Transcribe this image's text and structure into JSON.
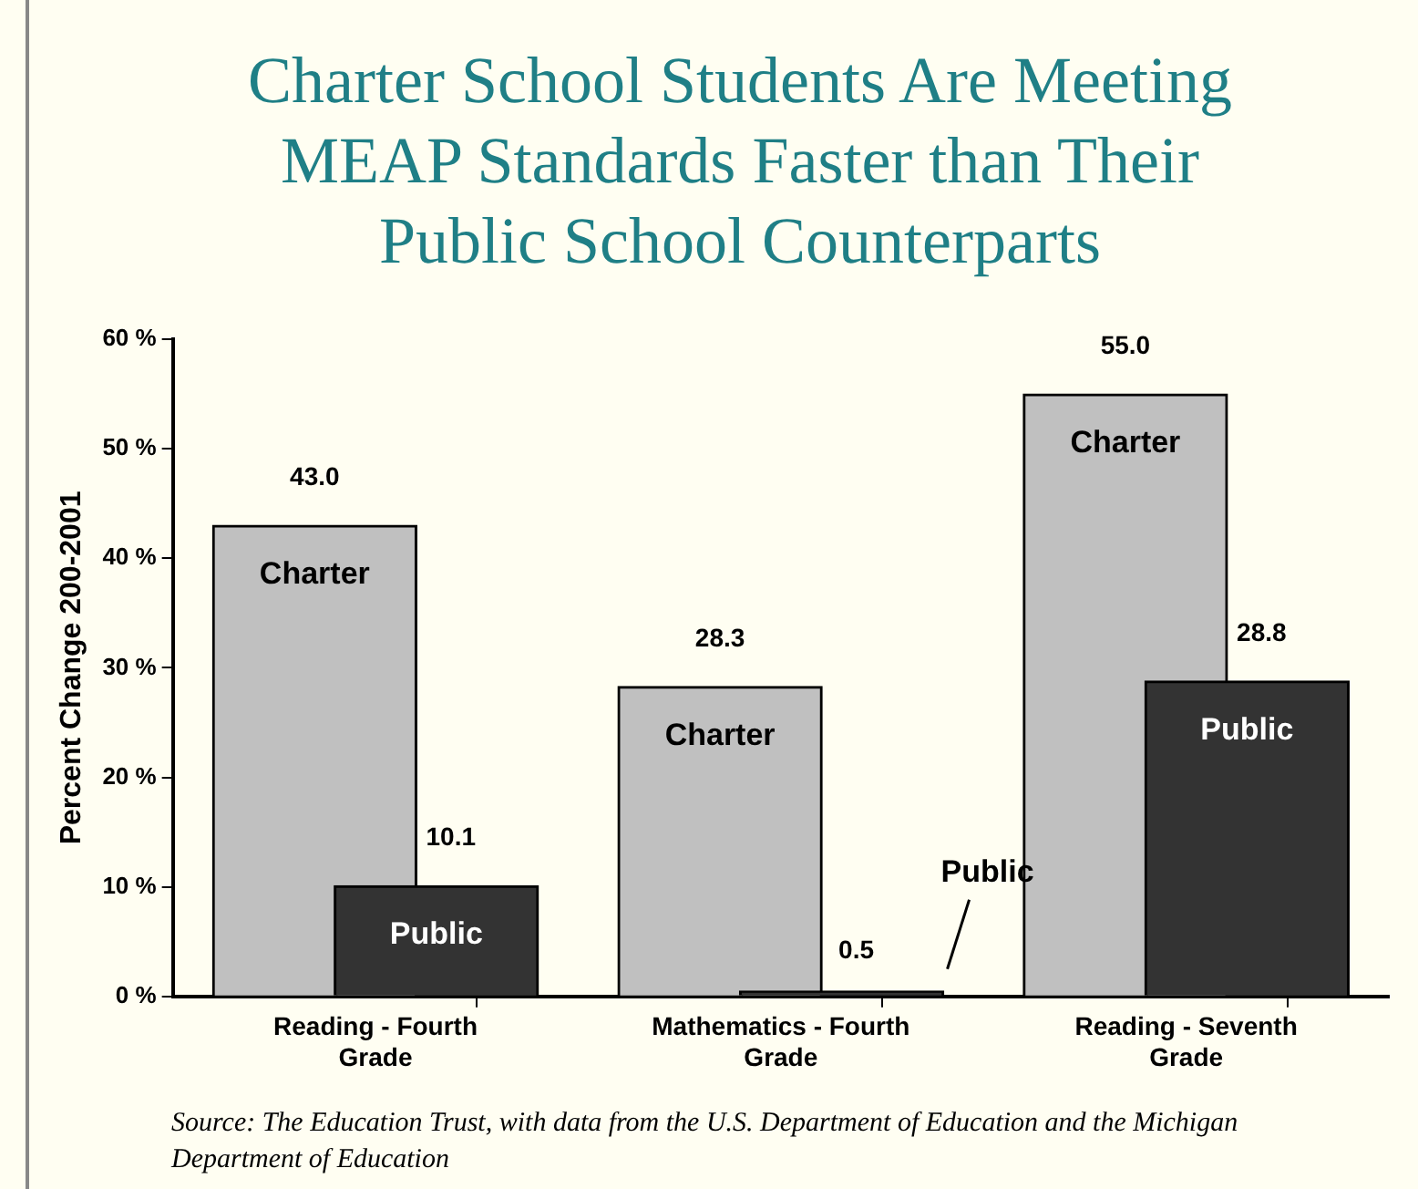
{
  "chart_data": {
    "type": "bar",
    "title": "Charter School Students Are Meeting MEAP Standards Faster than Their Public School Counterparts",
    "ylabel": "Percent Change 200-2001",
    "categories": [
      "Reading - Fourth Grade",
      "Mathematics - Fourth Grade",
      "Reading - Seventh Grade"
    ],
    "series": [
      {
        "name": "Charter",
        "color": "#c0c0c0",
        "values": [
          43.0,
          28.3,
          55.0
        ],
        "value_labels": [
          "43.0",
          "28.3",
          "55.0"
        ]
      },
      {
        "name": "Public",
        "color": "#333333",
        "values": [
          10.1,
          0.5,
          28.8
        ],
        "value_labels": [
          "10.1",
          "0.5",
          "28.8"
        ]
      }
    ],
    "ylim": [
      0,
      60
    ],
    "yticks": [
      {
        "value": 0,
        "label": "0 %"
      },
      {
        "value": 10,
        "label": "10 %"
      },
      {
        "value": 20,
        "label": "20 %"
      },
      {
        "value": 30,
        "label": "30 %"
      },
      {
        "value": 40,
        "label": "40 %"
      },
      {
        "value": 50,
        "label": "50 %"
      },
      {
        "value": 60,
        "label": "60 %"
      }
    ],
    "grid": false,
    "legend": false,
    "annotations": [
      "Source: The Education Trust, with data from the U.S. Department of Education and the Michigan Department of Education"
    ]
  }
}
